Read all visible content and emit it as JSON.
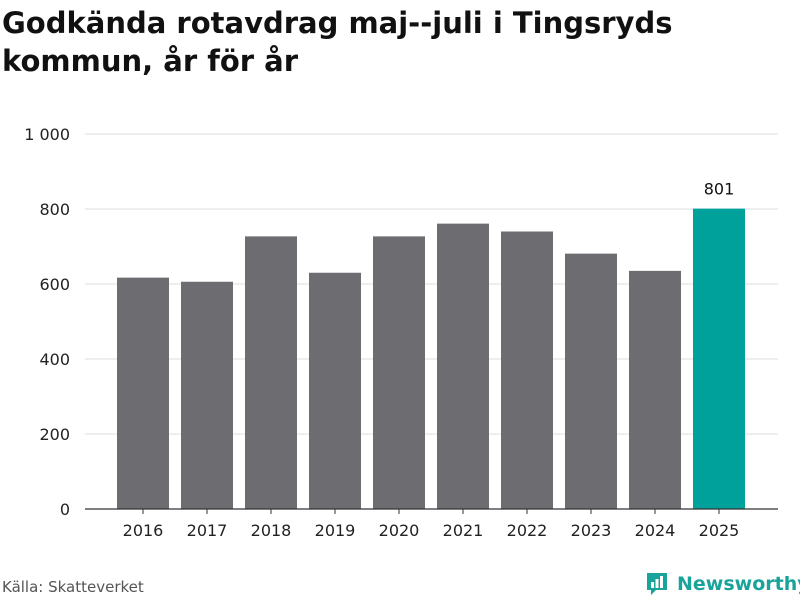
{
  "title": "Godkända rotavdrag maj--juli i Tingsryds kommun, år för år",
  "source": "Källa: Skatteverket",
  "brand": "Newsworthy",
  "colors": {
    "bar": "#6d6c71",
    "highlight": "#00a19a",
    "grid": "#dddddd",
    "axis": "#333333",
    "brand": "#1aa39a"
  },
  "chart_data": {
    "type": "bar",
    "categories": [
      "2016",
      "2017",
      "2018",
      "2019",
      "2020",
      "2021",
      "2022",
      "2023",
      "2024",
      "2025"
    ],
    "values": [
      617,
      606,
      727,
      630,
      727,
      761,
      740,
      681,
      635,
      801
    ],
    "highlight_index": 9,
    "data_labels": [
      null,
      null,
      null,
      null,
      null,
      null,
      null,
      null,
      null,
      "801"
    ],
    "ylim": [
      0,
      1000
    ],
    "yticks": [
      0,
      200,
      400,
      600,
      800,
      1000
    ],
    "ytick_labels": [
      "0",
      "200",
      "400",
      "600",
      "800",
      "1 000"
    ],
    "grid": true
  }
}
